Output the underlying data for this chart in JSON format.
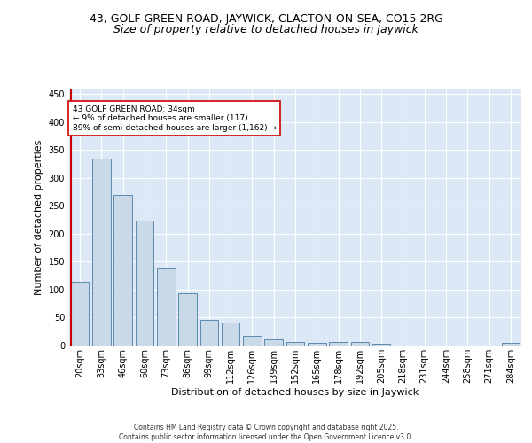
{
  "title1": "43, GOLF GREEN ROAD, JAYWICK, CLACTON-ON-SEA, CO15 2RG",
  "title2": "Size of property relative to detached houses in Jaywick",
  "xlabel": "Distribution of detached houses by size in Jaywick",
  "ylabel": "Number of detached properties",
  "categories": [
    "20sqm",
    "33sqm",
    "46sqm",
    "60sqm",
    "73sqm",
    "86sqm",
    "99sqm",
    "112sqm",
    "126sqm",
    "139sqm",
    "152sqm",
    "165sqm",
    "178sqm",
    "192sqm",
    "205sqm",
    "218sqm",
    "231sqm",
    "244sqm",
    "258sqm",
    "271sqm",
    "284sqm"
  ],
  "values": [
    115,
    335,
    270,
    224,
    138,
    93,
    46,
    41,
    18,
    11,
    6,
    5,
    6,
    7,
    3,
    0,
    0,
    0,
    0,
    0,
    4
  ],
  "bar_color": "#c9d9e8",
  "bar_edge_color": "#5a8ab0",
  "highlight_line_color": "#cc0000",
  "highlight_bar_index": 0,
  "annotation_text": "43 GOLF GREEN ROAD: 34sqm\n← 9% of detached houses are smaller (117)\n89% of semi-detached houses are larger (1,162) →",
  "annotation_box_color": "#ffffff",
  "annotation_box_edge_color": "#cc0000",
  "ylim": [
    0,
    460
  ],
  "yticks": [
    0,
    50,
    100,
    150,
    200,
    250,
    300,
    350,
    400,
    450
  ],
  "bg_color": "#dce8f5",
  "footer_text": "Contains HM Land Registry data © Crown copyright and database right 2025.\nContains public sector information licensed under the Open Government Licence v3.0.",
  "title1_fontsize": 9,
  "title2_fontsize": 9,
  "axis_fontsize": 8,
  "tick_fontsize": 7
}
